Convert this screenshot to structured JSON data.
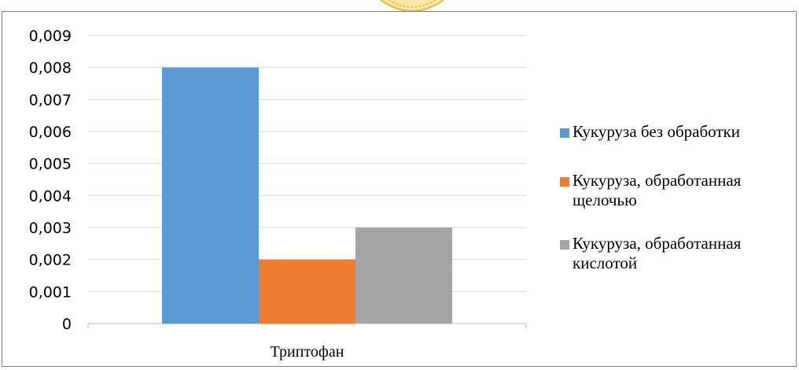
{
  "chart_data": {
    "type": "bar",
    "categories": [
      "Триптофан"
    ],
    "series": [
      {
        "name": "Кукуруза без обработки",
        "values": [
          0.008
        ],
        "color": "#5b9bd5"
      },
      {
        "name": "Кукуруза, обработанная щелочью",
        "values": [
          0.002
        ],
        "color": "#ed7d31"
      },
      {
        "name": "Кукуруза, обработанная кислотой",
        "values": [
          0.003
        ],
        "color": "#a5a5a5"
      }
    ],
    "ylim": [
      0,
      0.009
    ],
    "yticks": [
      "0",
      "0,001",
      "0,002",
      "0,003",
      "0,004",
      "0,005",
      "0,006",
      "0,007",
      "0,008",
      "0,009"
    ],
    "grid": true,
    "legend_position": "right",
    "title": "",
    "xlabel": "",
    "ylabel": ""
  }
}
